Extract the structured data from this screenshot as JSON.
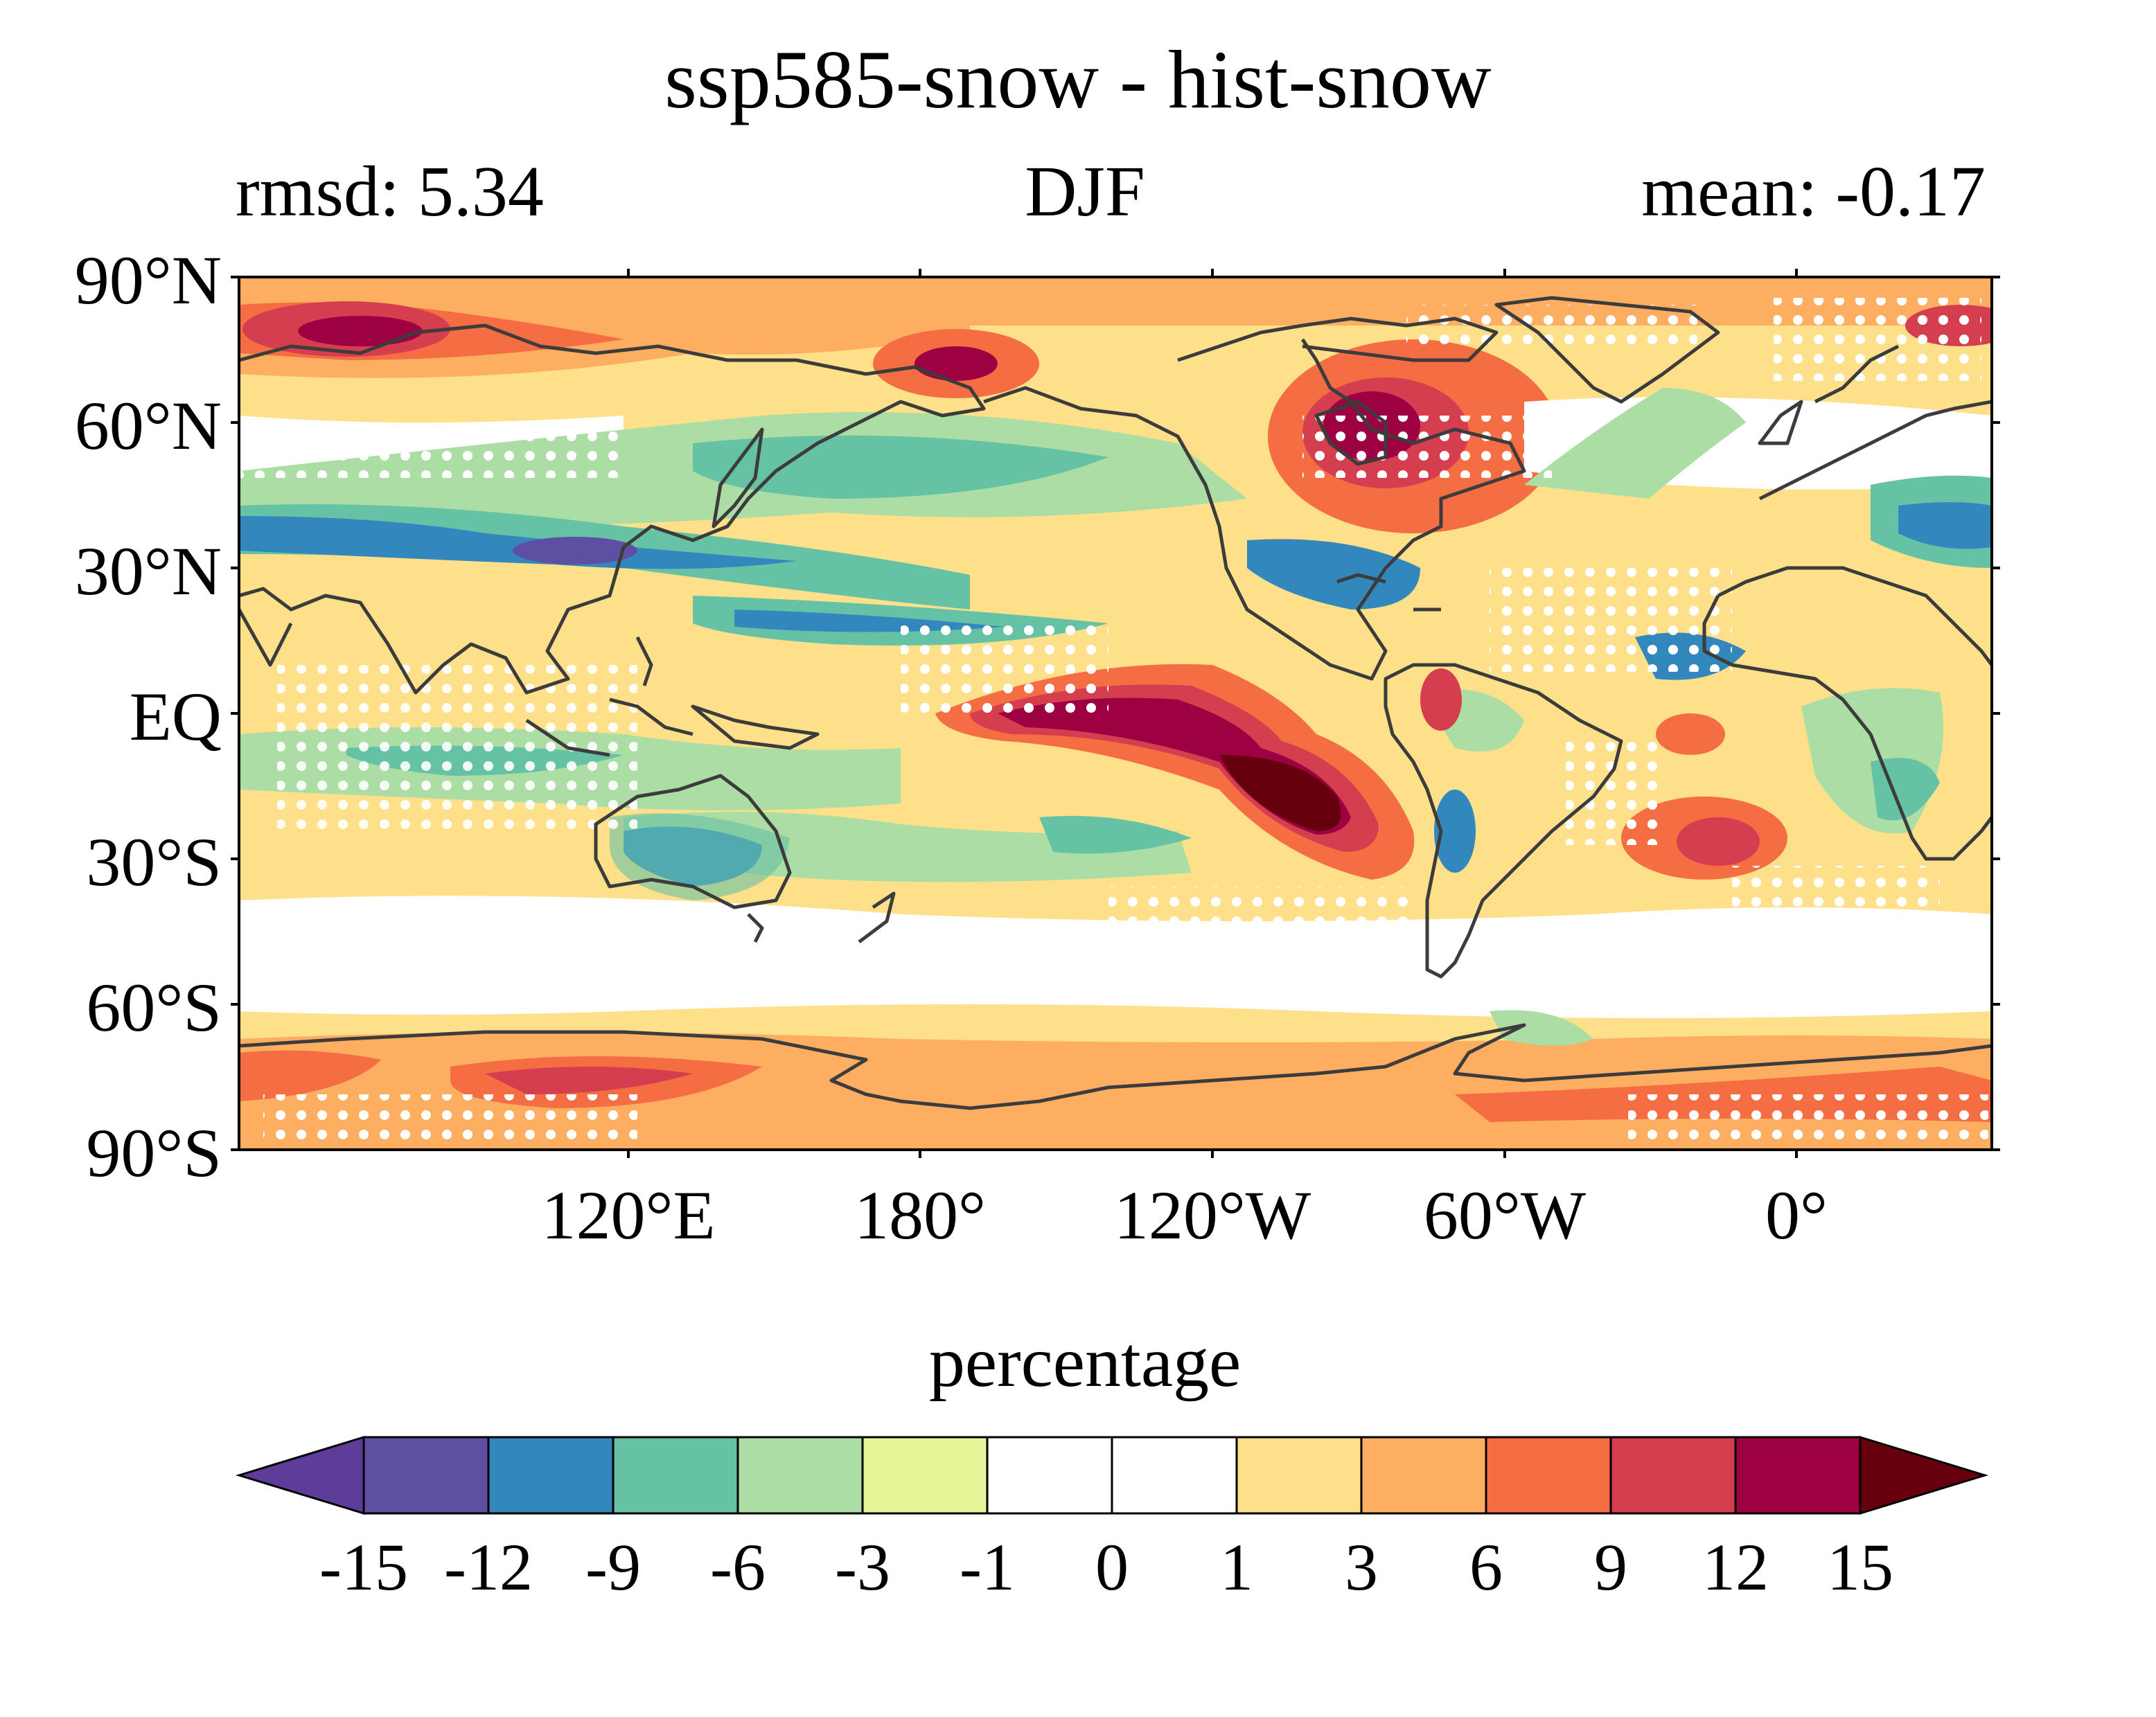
{
  "title": "ssp585-snow - hist-snow",
  "subtitle_left": "rmsd: 5.34",
  "subtitle_center": "DJF",
  "subtitle_right": "mean: -0.17",
  "map": {
    "projection": "equirectangular",
    "lat_labels": [
      "90°N",
      "60°N",
      "30°N",
      "EQ",
      "30°S",
      "60°S",
      "90°S"
    ],
    "lon_labels": [
      "120°E",
      "180°",
      "120°W",
      "60°W",
      "0°"
    ],
    "lon_range": [
      40,
      400
    ],
    "lat_range": [
      -90,
      90
    ],
    "stippling": "white dots mark grid points",
    "coastline_color": "#3c3c3c"
  },
  "colorbar": {
    "label": "percentage",
    "ticks": [
      "-15",
      "-12",
      "-9",
      "-6",
      "-3",
      "-1",
      "0",
      "1",
      "3",
      "6",
      "9",
      "12",
      "15"
    ],
    "levels": [
      -15,
      -12,
      -9,
      -6,
      -3,
      -1,
      0,
      1,
      3,
      6,
      9,
      12,
      15
    ],
    "colors": [
      "#5e3c99",
      "#5e4fa2",
      "#3288bd",
      "#66c2a5",
      "#abdda4",
      "#e6f598",
      "#ffffff",
      "#ffffff",
      "#fee08b",
      "#fdae61",
      "#f46d43",
      "#d53e4f",
      "#9e0142",
      "#67000d"
    ],
    "extend": "both"
  }
}
